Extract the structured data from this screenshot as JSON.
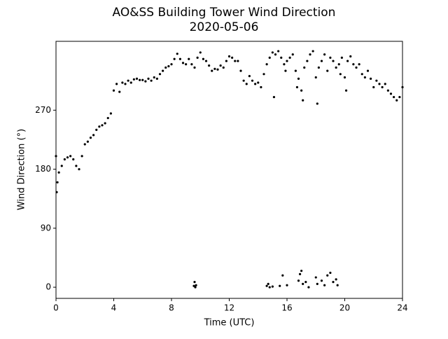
{
  "chart_data": {
    "type": "scatter",
    "title": "AO&SS Building Tower Wind Direction",
    "subtitle": "2020-05-06",
    "x_label": "Time (UTC)",
    "y_label": "Wind Direction (°)",
    "color": "#000000",
    "xlim": [
      0,
      24
    ],
    "xticks": [
      0,
      4,
      8,
      12,
      16,
      20,
      24
    ],
    "ylim": [
      -17,
      375
    ],
    "yticks": [
      0,
      90,
      180,
      270
    ],
    "grid": false,
    "x": [
      0,
      0.2,
      0.4,
      0.6,
      0.8,
      1.0,
      1.2,
      1.4,
      1.6,
      1.8,
      2.0,
      2.2,
      2.4,
      2.6,
      2.8,
      3.0,
      3.2,
      3.4,
      3.6,
      3.8,
      4.0,
      4.2,
      4.4,
      4.6,
      4.8,
      5.0,
      5.2,
      5.4,
      5.6,
      5.8,
      6.0,
      6.2,
      6.4,
      6.6,
      6.8,
      7.0,
      7.2,
      7.4,
      7.6,
      7.8,
      8.0,
      8.2,
      8.4,
      8.6,
      8.8,
      9.0,
      9.2,
      9.4,
      9.6,
      9.8,
      10.0,
      10.2,
      10.4,
      10.6,
      10.8,
      11.0,
      11.2,
      11.4,
      11.6,
      11.8,
      12.0,
      12.2,
      12.4,
      12.6,
      12.8,
      13.0,
      13.2,
      13.4,
      13.6,
      13.8,
      14.0,
      14.2,
      14.4,
      14.6,
      14.8,
      15.0,
      15.2,
      15.4,
      15.6,
      15.8,
      16.0,
      16.2,
      16.4,
      16.6,
      16.8,
      17.0,
      17.2,
      17.4,
      17.6,
      17.8,
      18.0,
      18.2,
      18.4,
      18.6,
      18.8,
      19.0,
      19.2,
      19.4,
      19.6,
      19.8,
      20.0,
      20.2,
      20.4,
      20.6,
      20.8,
      21.0,
      21.2,
      21.4,
      21.6,
      21.8,
      22.0,
      22.2,
      22.4,
      22.6,
      22.8,
      23.0,
      23.2,
      23.4,
      23.6,
      23.8,
      24.0,
      0.05,
      0.1,
      15.1,
      15.9,
      16.7,
      17.1,
      18.1,
      19.7,
      20.1,
      9.55,
      9.6,
      9.65,
      9.7,
      14.6,
      14.7,
      14.8,
      15.0,
      15.5,
      15.7,
      16.0,
      16.8,
      16.9,
      17.0,
      17.1,
      17.3,
      17.5,
      18.0,
      18.1,
      18.4,
      18.6,
      18.8,
      19.0,
      19.2,
      19.4,
      19.5
    ],
    "values": [
      200,
      175,
      185,
      195,
      198,
      200,
      195,
      185,
      180,
      200,
      218,
      222,
      228,
      232,
      240,
      245,
      247,
      250,
      258,
      265,
      300,
      310,
      298,
      312,
      310,
      315,
      312,
      317,
      318,
      316,
      316,
      314,
      318,
      315,
      320,
      318,
      325,
      330,
      335,
      337,
      340,
      348,
      356,
      348,
      342,
      340,
      348,
      340,
      335,
      350,
      358,
      348,
      345,
      338,
      330,
      333,
      332,
      338,
      335,
      345,
      352,
      350,
      345,
      345,
      330,
      315,
      310,
      322,
      315,
      310,
      312,
      305,
      325,
      340,
      350,
      358,
      355,
      360,
      350,
      340,
      345,
      350,
      355,
      330,
      318,
      300,
      335,
      345,
      355,
      360,
      320,
      335,
      345,
      355,
      330,
      350,
      345,
      335,
      340,
      350,
      320,
      345,
      352,
      340,
      335,
      340,
      325,
      320,
      330,
      318,
      305,
      315,
      310,
      305,
      310,
      300,
      295,
      290,
      285,
      290,
      305,
      145,
      160,
      290,
      330,
      305,
      285,
      280,
      325,
      300,
      2,
      8,
      0,
      3,
      2,
      5,
      0,
      1,
      2,
      18,
      3,
      10,
      20,
      25,
      5,
      8,
      0,
      15,
      5,
      10,
      3,
      18,
      22,
      8,
      12,
      3
    ]
  }
}
